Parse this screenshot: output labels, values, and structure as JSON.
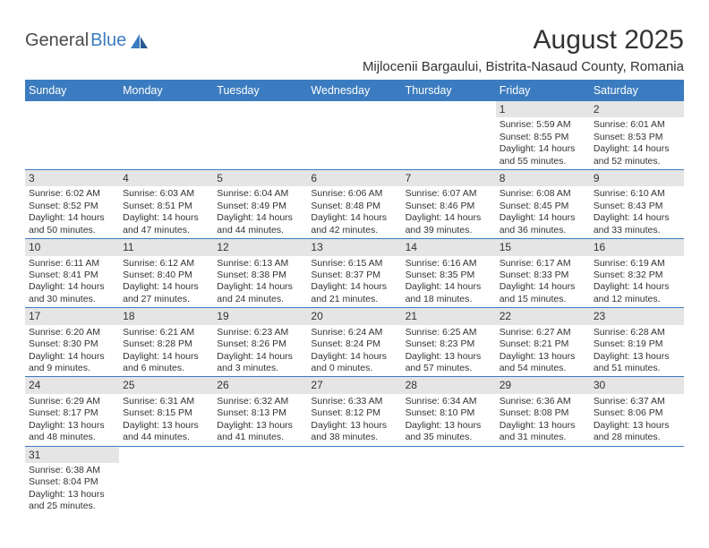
{
  "brand": {
    "part1": "General",
    "part2": "Blue",
    "logo_color": "#3b7bbf",
    "text_color": "#4a4a4a"
  },
  "title": "August 2025",
  "location": "Mijlocenii Bargaului, Bistrita-Nasaud County, Romania",
  "colors": {
    "header_bg": "#3b7bbf",
    "header_text": "#ffffff",
    "cell_border": "#3b7bbf",
    "daynum_bg": "#e5e5e5",
    "body_text": "#333333"
  },
  "dayHeaders": [
    "Sunday",
    "Monday",
    "Tuesday",
    "Wednesday",
    "Thursday",
    "Friday",
    "Saturday"
  ],
  "weeks": [
    [
      null,
      null,
      null,
      null,
      null,
      {
        "d": "1",
        "sr": "5:59 AM",
        "ss": "8:55 PM",
        "dl": "14 hours and 55 minutes."
      },
      {
        "d": "2",
        "sr": "6:01 AM",
        "ss": "8:53 PM",
        "dl": "14 hours and 52 minutes."
      }
    ],
    [
      {
        "d": "3",
        "sr": "6:02 AM",
        "ss": "8:52 PM",
        "dl": "14 hours and 50 minutes."
      },
      {
        "d": "4",
        "sr": "6:03 AM",
        "ss": "8:51 PM",
        "dl": "14 hours and 47 minutes."
      },
      {
        "d": "5",
        "sr": "6:04 AM",
        "ss": "8:49 PM",
        "dl": "14 hours and 44 minutes."
      },
      {
        "d": "6",
        "sr": "6:06 AM",
        "ss": "8:48 PM",
        "dl": "14 hours and 42 minutes."
      },
      {
        "d": "7",
        "sr": "6:07 AM",
        "ss": "8:46 PM",
        "dl": "14 hours and 39 minutes."
      },
      {
        "d": "8",
        "sr": "6:08 AM",
        "ss": "8:45 PM",
        "dl": "14 hours and 36 minutes."
      },
      {
        "d": "9",
        "sr": "6:10 AM",
        "ss": "8:43 PM",
        "dl": "14 hours and 33 minutes."
      }
    ],
    [
      {
        "d": "10",
        "sr": "6:11 AM",
        "ss": "8:41 PM",
        "dl": "14 hours and 30 minutes."
      },
      {
        "d": "11",
        "sr": "6:12 AM",
        "ss": "8:40 PM",
        "dl": "14 hours and 27 minutes."
      },
      {
        "d": "12",
        "sr": "6:13 AM",
        "ss": "8:38 PM",
        "dl": "14 hours and 24 minutes."
      },
      {
        "d": "13",
        "sr": "6:15 AM",
        "ss": "8:37 PM",
        "dl": "14 hours and 21 minutes."
      },
      {
        "d": "14",
        "sr": "6:16 AM",
        "ss": "8:35 PM",
        "dl": "14 hours and 18 minutes."
      },
      {
        "d": "15",
        "sr": "6:17 AM",
        "ss": "8:33 PM",
        "dl": "14 hours and 15 minutes."
      },
      {
        "d": "16",
        "sr": "6:19 AM",
        "ss": "8:32 PM",
        "dl": "14 hours and 12 minutes."
      }
    ],
    [
      {
        "d": "17",
        "sr": "6:20 AM",
        "ss": "8:30 PM",
        "dl": "14 hours and 9 minutes."
      },
      {
        "d": "18",
        "sr": "6:21 AM",
        "ss": "8:28 PM",
        "dl": "14 hours and 6 minutes."
      },
      {
        "d": "19",
        "sr": "6:23 AM",
        "ss": "8:26 PM",
        "dl": "14 hours and 3 minutes."
      },
      {
        "d": "20",
        "sr": "6:24 AM",
        "ss": "8:24 PM",
        "dl": "14 hours and 0 minutes."
      },
      {
        "d": "21",
        "sr": "6:25 AM",
        "ss": "8:23 PM",
        "dl": "13 hours and 57 minutes."
      },
      {
        "d": "22",
        "sr": "6:27 AM",
        "ss": "8:21 PM",
        "dl": "13 hours and 54 minutes."
      },
      {
        "d": "23",
        "sr": "6:28 AM",
        "ss": "8:19 PM",
        "dl": "13 hours and 51 minutes."
      }
    ],
    [
      {
        "d": "24",
        "sr": "6:29 AM",
        "ss": "8:17 PM",
        "dl": "13 hours and 48 minutes."
      },
      {
        "d": "25",
        "sr": "6:31 AM",
        "ss": "8:15 PM",
        "dl": "13 hours and 44 minutes."
      },
      {
        "d": "26",
        "sr": "6:32 AM",
        "ss": "8:13 PM",
        "dl": "13 hours and 41 minutes."
      },
      {
        "d": "27",
        "sr": "6:33 AM",
        "ss": "8:12 PM",
        "dl": "13 hours and 38 minutes."
      },
      {
        "d": "28",
        "sr": "6:34 AM",
        "ss": "8:10 PM",
        "dl": "13 hours and 35 minutes."
      },
      {
        "d": "29",
        "sr": "6:36 AM",
        "ss": "8:08 PM",
        "dl": "13 hours and 31 minutes."
      },
      {
        "d": "30",
        "sr": "6:37 AM",
        "ss": "8:06 PM",
        "dl": "13 hours and 28 minutes."
      }
    ],
    [
      {
        "d": "31",
        "sr": "6:38 AM",
        "ss": "8:04 PM",
        "dl": "13 hours and 25 minutes."
      },
      null,
      null,
      null,
      null,
      null,
      null
    ]
  ],
  "labels": {
    "sunrise": "Sunrise: ",
    "sunset": "Sunset: ",
    "daylight": "Daylight: "
  }
}
